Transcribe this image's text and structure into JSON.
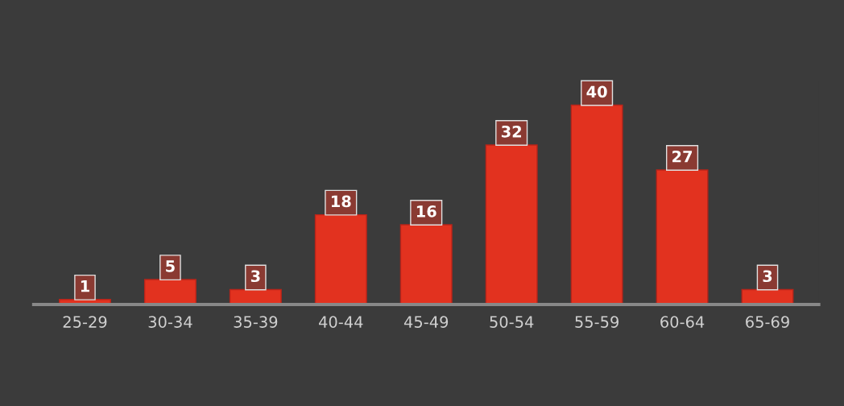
{
  "chart_data": {
    "type": "bar",
    "categories": [
      "25-29",
      "30-34",
      "35-39",
      "40-44",
      "45-49",
      "50-54",
      "55-59",
      "60-64",
      "65-69"
    ],
    "values": [
      1,
      5,
      3,
      18,
      16,
      32,
      40,
      27,
      3
    ],
    "color": "#e2321f",
    "data_labels": true,
    "grid": false,
    "legend": false
  }
}
